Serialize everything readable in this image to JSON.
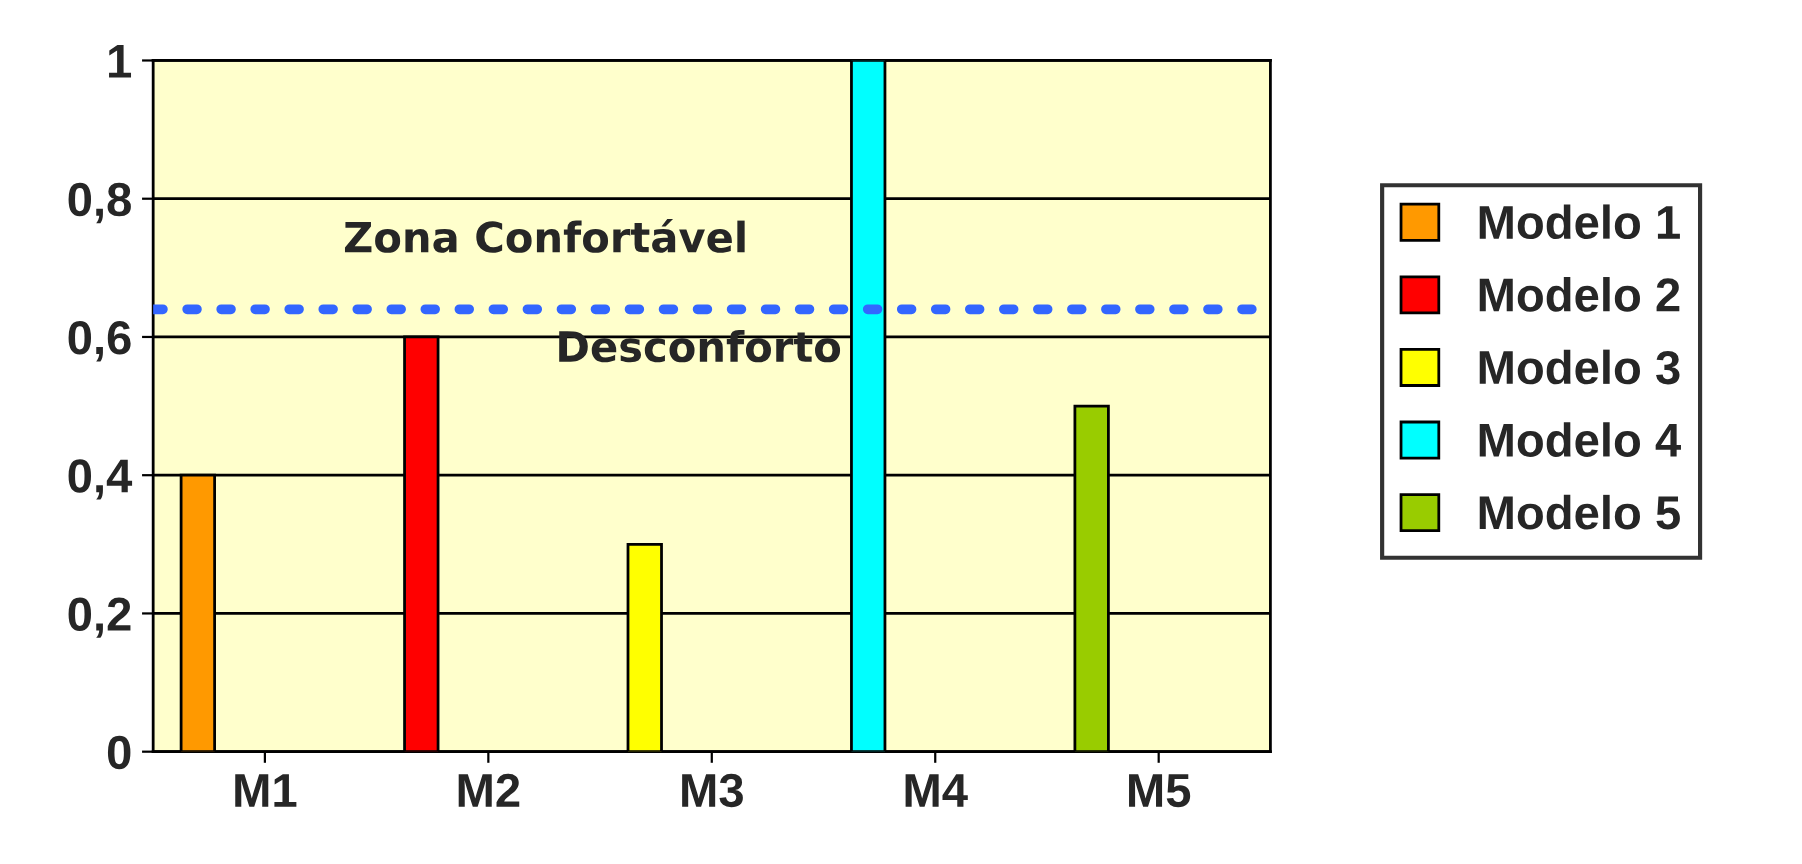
{
  "chart_data": {
    "type": "bar",
    "categories": [
      "M1",
      "M2",
      "M3",
      "M4",
      "M5"
    ],
    "series": [
      {
        "name": "Modelo 1",
        "color": "#ff9900",
        "values": [
          0.4,
          null,
          null,
          null,
          null
        ]
      },
      {
        "name": "Modelo 2",
        "color": "#ff0000",
        "values": [
          null,
          0.6,
          null,
          null,
          null
        ]
      },
      {
        "name": "Modelo 3",
        "color": "#ffff00",
        "values": [
          null,
          null,
          0.3,
          null,
          null
        ]
      },
      {
        "name": "Modelo 4",
        "color": "#00ffff",
        "values": [
          null,
          null,
          null,
          1,
          null
        ]
      },
      {
        "name": "Modelo 5",
        "color": "#99cc00",
        "values": [
          null,
          null,
          null,
          null,
          0.5
        ]
      }
    ],
    "ylim": [
      0,
      1
    ],
    "yticks": [
      0,
      {
        "value": 0.2,
        "label": "0,2"
      },
      {
        "value": 0.4,
        "label": "0,4"
      },
      {
        "value": 0.6,
        "label": "0,6"
      },
      {
        "value": 0.8,
        "label": "0,8"
      },
      1
    ],
    "ref_lines": [
      {
        "axis": "y",
        "value": 0.64,
        "color": "#3366ff",
        "line_style": "dotted"
      }
    ],
    "annotations": [
      "Zona Confortável",
      "Desconforto"
    ],
    "grid": "y",
    "legend": "right"
  }
}
